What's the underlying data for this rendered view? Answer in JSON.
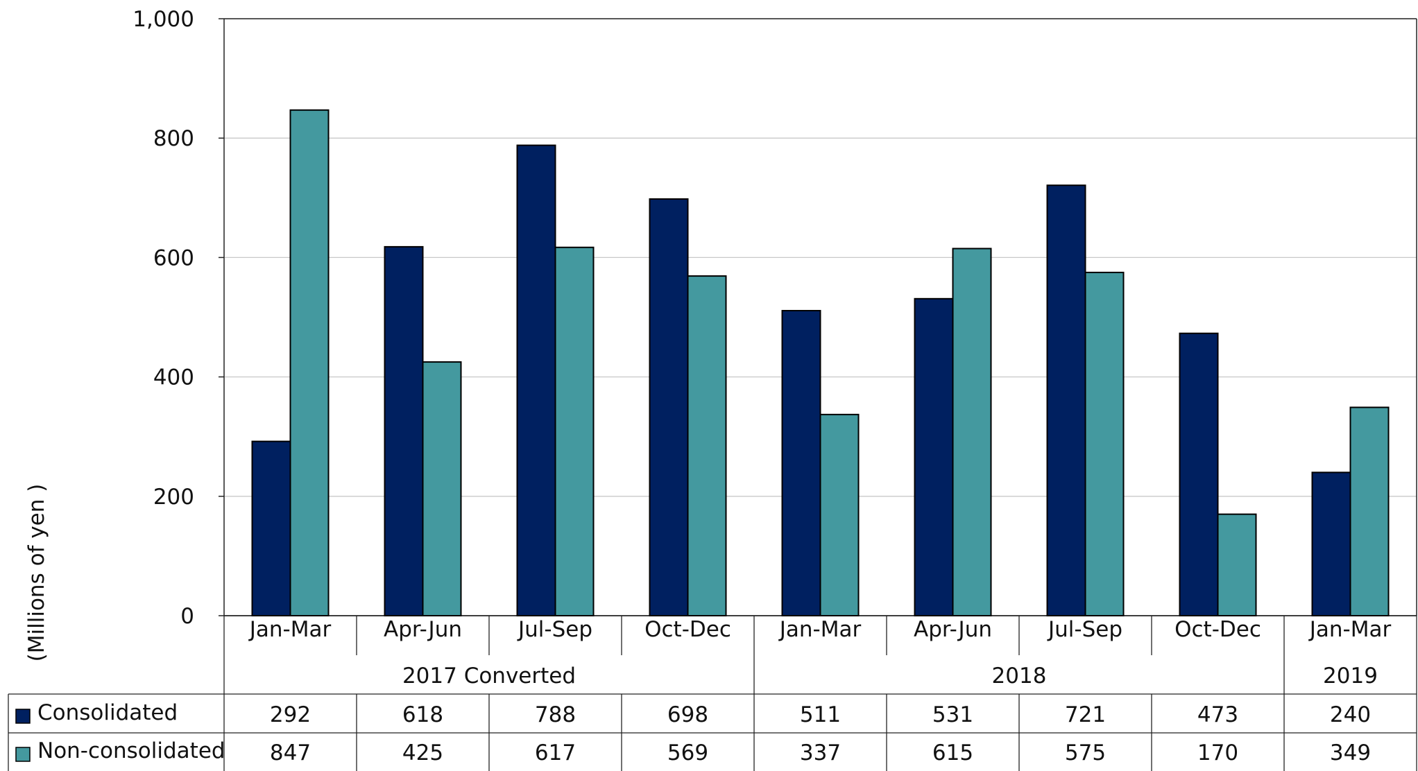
{
  "chart_data": {
    "type": "bar",
    "title": "",
    "xlabel": "",
    "ylabel": "(Millions of yen )",
    "ylim": [
      0,
      1000
    ],
    "yticks": [
      0,
      200,
      400,
      600,
      800,
      1000
    ],
    "ytick_labels": [
      "0",
      "200",
      "400",
      "600",
      "800",
      "1,000"
    ],
    "grid": true,
    "categories": [
      "Jan-Mar",
      "Apr-Jun",
      "Jul-Sep",
      "Oct-Dec",
      "Jan-Mar",
      "Apr-Jun",
      "Jul-Sep",
      "Oct-Dec",
      "Jan-Mar"
    ],
    "groups": [
      {
        "label": "2017 Converted",
        "count": 4
      },
      {
        "label": "2018",
        "count": 4
      },
      {
        "label": "2019",
        "count": 1
      }
    ],
    "series": [
      {
        "name": "Consolidated",
        "color": "#002060",
        "values": [
          292,
          618,
          788,
          698,
          511,
          531,
          721,
          473,
          240
        ]
      },
      {
        "name": "Non-consolidated",
        "color": "#44999F",
        "values": [
          847,
          425,
          617,
          569,
          337,
          615,
          575,
          170,
          349
        ]
      }
    ],
    "legend": "data-table-left"
  }
}
